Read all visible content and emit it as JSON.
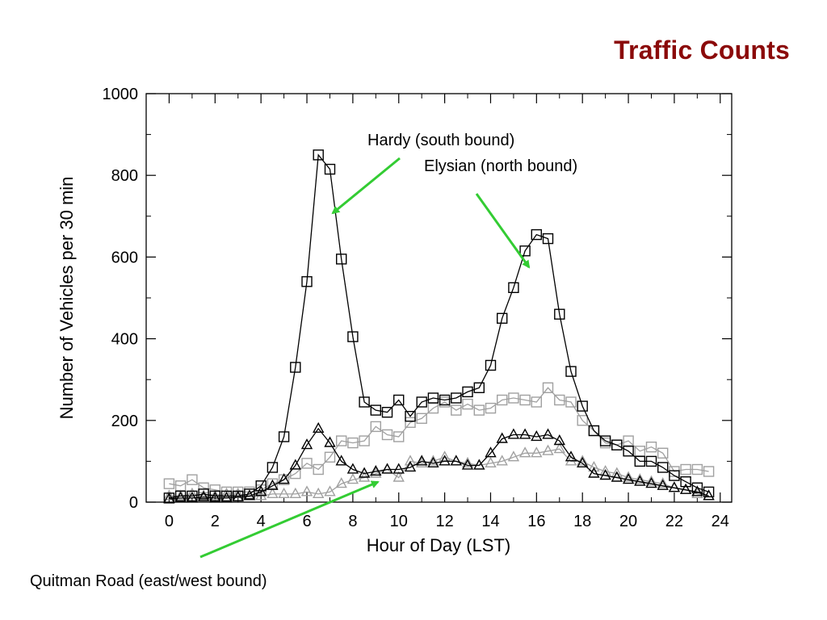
{
  "slide": {
    "title": "Traffic Counts"
  },
  "annotations": {
    "hardy": "Hardy (south bound)",
    "elysian": "Elysian (north bound)",
    "quitman": "Quitman Road (east/west bound)"
  },
  "colors": {
    "title": "#8b0a0a",
    "arrow": "#33cc33",
    "dark": "#000000",
    "light": "#a0a0a0"
  },
  "chart_data": {
    "type": "line",
    "title": "",
    "xlabel": "Hour of Day (LST)",
    "ylabel": "Number of Vehicles per 30 min",
    "xlim": [
      -1,
      24.5
    ],
    "ylim": [
      0,
      1000
    ],
    "xticks": [
      0,
      2,
      4,
      6,
      8,
      10,
      12,
      14,
      16,
      18,
      20,
      22,
      24
    ],
    "yticks": [
      0,
      200,
      400,
      600,
      800,
      1000
    ],
    "grid": false,
    "x": [
      0,
      0.5,
      1,
      1.5,
      2,
      2.5,
      3,
      3.5,
      4,
      4.5,
      5,
      5.5,
      6,
      6.5,
      7,
      7.5,
      8,
      8.5,
      9,
      9.5,
      10,
      10.5,
      11,
      11.5,
      12,
      12.5,
      13,
      13.5,
      14,
      14.5,
      15,
      15.5,
      16,
      16.5,
      17,
      17.5,
      18,
      18.5,
      19,
      19.5,
      20,
      20.5,
      21,
      21.5,
      22,
      22.5,
      23,
      23.5
    ],
    "series": [
      {
        "marker": "square",
        "color": "#000000",
        "values": [
          10,
          15,
          15,
          20,
          15,
          15,
          15,
          20,
          40,
          85,
          160,
          330,
          540,
          850,
          815,
          595,
          405,
          245,
          225,
          220,
          250,
          210,
          245,
          255,
          250,
          255,
          270,
          280,
          335,
          450,
          525,
          615,
          655,
          645,
          460,
          320,
          235,
          175,
          150,
          140,
          125,
          100,
          100,
          85,
          65,
          50,
          35,
          25
        ]
      },
      {
        "marker": "triangle",
        "color": "#000000",
        "values": [
          8,
          10,
          10,
          12,
          10,
          10,
          12,
          15,
          25,
          40,
          55,
          90,
          140,
          180,
          145,
          100,
          80,
          70,
          75,
          80,
          80,
          85,
          100,
          95,
          100,
          100,
          90,
          90,
          120,
          155,
          165,
          165,
          160,
          165,
          150,
          110,
          95,
          70,
          65,
          60,
          55,
          50,
          45,
          40,
          35,
          30,
          25,
          15
        ]
      },
      {
        "marker": "square",
        "color": "#a0a0a0",
        "values": [
          45,
          40,
          55,
          35,
          30,
          25,
          25,
          25,
          30,
          45,
          55,
          70,
          95,
          80,
          110,
          150,
          145,
          150,
          185,
          165,
          160,
          195,
          205,
          230,
          245,
          225,
          240,
          225,
          230,
          250,
          255,
          250,
          245,
          280,
          250,
          245,
          200,
          175,
          145,
          140,
          150,
          125,
          135,
          120,
          75,
          80,
          80,
          75
        ]
      },
      {
        "marker": "triangle",
        "color": "#a0a0a0",
        "values": [
          15,
          15,
          20,
          15,
          15,
          20,
          20,
          15,
          15,
          20,
          20,
          20,
          25,
          20,
          25,
          45,
          55,
          60,
          70,
          80,
          60,
          100,
          95,
          100,
          110,
          100,
          95,
          90,
          95,
          100,
          110,
          120,
          120,
          125,
          130,
          100,
          100,
          85,
          75,
          70,
          60,
          55,
          50,
          45,
          35,
          30,
          20,
          15
        ]
      }
    ]
  }
}
